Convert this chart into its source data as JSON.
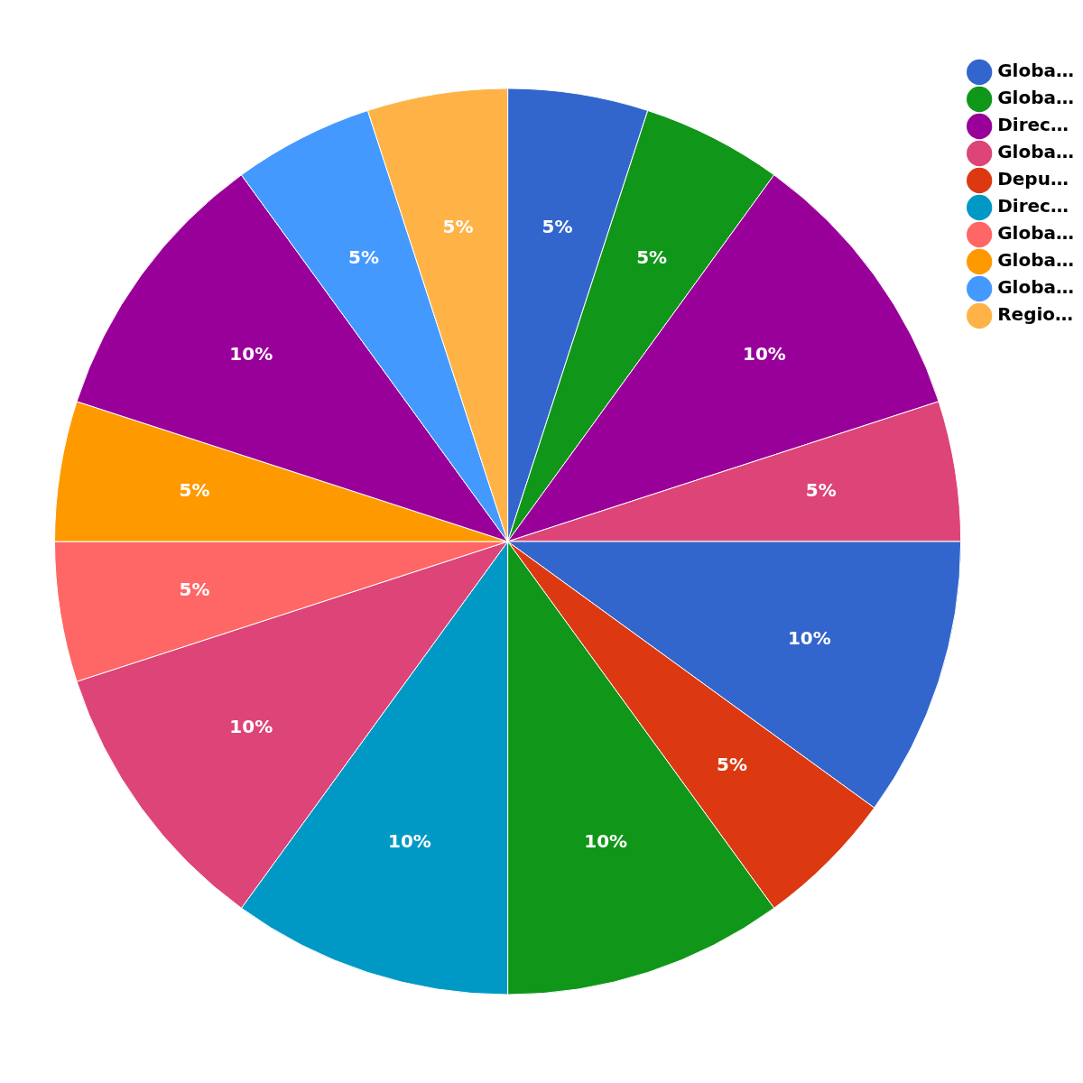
{
  "chart_data": {
    "type": "pie",
    "categories": [
      "Globa…",
      "Globa…",
      "Direc…",
      "Globa…",
      null,
      "Depu…",
      null,
      "Direc…",
      null,
      "Globa…",
      "Globa…",
      null,
      "Globa…",
      "Regio…"
    ],
    "values": [
      5,
      5,
      10,
      5,
      10,
      5,
      10,
      10,
      10,
      5,
      5,
      10,
      5,
      5
    ],
    "value_labels": [
      "5%",
      "5%",
      "10%",
      "5%",
      "10%",
      "5%",
      "10%",
      "10%",
      "10%",
      "5%",
      "5%",
      "10%",
      "5%",
      "5%"
    ],
    "colors": [
      "#3366cc",
      "#109618",
      "#990099",
      "#dd4477",
      "#3366cc",
      "#dc3912",
      "#109618",
      "#0099c6",
      "#dd4477",
      "#ff6666",
      "#ff9900",
      "#990099",
      "#4499ff",
      "#ffb347"
    ],
    "legend": "top right"
  }
}
